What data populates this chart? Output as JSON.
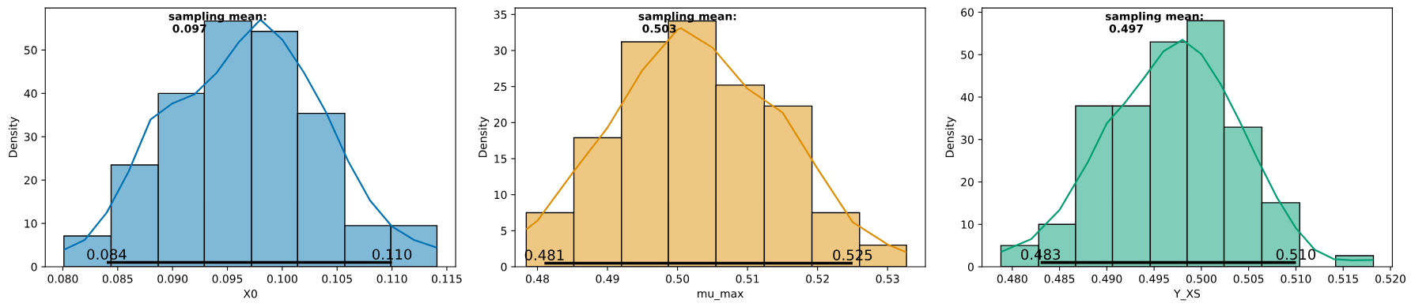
{
  "chart_data": [
    {
      "type": "histogram",
      "xlabel": "X0",
      "ylabel": "Density",
      "color": "#80b9d8",
      "bins": [
        0.0801,
        0.0844,
        0.0887,
        0.0929,
        0.0972,
        0.1014,
        0.1057,
        0.1099,
        0.1141
      ],
      "values": [
        7.1,
        23.5,
        40.0,
        56.7,
        54.3,
        35.4,
        9.5,
        9.5
      ],
      "series": [
        {
          "type": "line",
          "color": "#0173b2",
          "x": [
            0.0801,
            0.082,
            0.084,
            0.086,
            0.088,
            0.09,
            0.092,
            0.094,
            0.096,
            0.098,
            0.1,
            0.102,
            0.104,
            0.106,
            0.108,
            0.11,
            0.112,
            0.1141
          ],
          "values": [
            3.9,
            6.2,
            12.5,
            22,
            34,
            37.7,
            39.8,
            44.7,
            51.7,
            57,
            52.4,
            44.7,
            35.6,
            24.4,
            15.3,
            9.3,
            6.2,
            4.4
          ]
        },
        {
          "type": "line",
          "color": "#000000",
          "x": [
            0.084,
            0.11
          ],
          "values": [
            1,
            1
          ]
        }
      ],
      "annotations": [
        "sampling mean:\n 0.097",
        {
          "text": "0.084",
          "x": 0.084,
          "y": 1
        },
        {
          "text": "0.110",
          "x": 0.11,
          "y": 1
        }
      ],
      "xlim": [
        0.0784,
        0.1158
      ],
      "xticks": [
        {
          "value": 0.08,
          "label": "0.080"
        },
        0.085,
        {
          "value": 0.09,
          "label": "0.090"
        },
        0.095,
        {
          "value": 0.1,
          "label": "0.100"
        },
        0.105,
        {
          "value": 0.11,
          "label": "0.110"
        },
        0.115
      ],
      "ylim": [
        0,
        59.7
      ],
      "yticks": [
        0,
        10,
        20,
        30,
        40,
        50
      ]
    },
    {
      "type": "histogram",
      "xlabel": "mu_max",
      "ylabel": "Density",
      "color": "#eec782",
      "bins": [
        0.4784,
        0.4852,
        0.492,
        0.4987,
        0.5055,
        0.5124,
        0.5192,
        0.526,
        0.5327
      ],
      "values": [
        7.5,
        17.9,
        31.2,
        34.1,
        25.2,
        22.3,
        7.5,
        3.0
      ],
      "series": [
        {
          "type": "line",
          "color": "#de8f05",
          "x": [
            0.4784,
            0.48,
            0.485,
            0.49,
            0.495,
            0.5,
            0.5005,
            0.505,
            0.51,
            0.515,
            0.52,
            0.525,
            0.53,
            0.5327
          ],
          "values": [
            5.2,
            6.4,
            13,
            19.3,
            27.3,
            32.9,
            33.1,
            30.4,
            24.7,
            21.4,
            13.6,
            6.2,
            3.1,
            2.0
          ]
        },
        {
          "type": "line",
          "color": "#000000",
          "x": [
            0.481,
            0.525
          ],
          "values": [
            0.5,
            0.5
          ]
        }
      ],
      "annotations": [
        "sampling mean:\n 0.503",
        {
          "text": "0.481",
          "x": 0.481,
          "y": 0.5
        },
        {
          "text": "0.525",
          "x": 0.525,
          "y": 0.5
        }
      ],
      "xlim": [
        0.4768,
        0.5354
      ],
      "xticks": [
        {
          "value": 0.48,
          "label": "0.48"
        },
        {
          "value": 0.49,
          "label": "0.49"
        },
        {
          "value": 0.5,
          "label": "0.50"
        },
        {
          "value": 0.51,
          "label": "0.51"
        },
        {
          "value": 0.52,
          "label": "0.52"
        },
        {
          "value": 0.53,
          "label": "0.53"
        }
      ],
      "ylim": [
        0,
        35.9
      ],
      "yticks": [
        0,
        5,
        10,
        15,
        20,
        25,
        30,
        35
      ]
    },
    {
      "type": "histogram",
      "xlabel": "Y_XS",
      "ylabel": "Density",
      "color": "#80ceb9",
      "bins": [
        0.4788,
        0.4828,
        0.4867,
        0.4906,
        0.4946,
        0.4985,
        0.5024,
        0.5064,
        0.5104,
        0.5142,
        0.5182
      ],
      "values": [
        5.0,
        10.0,
        37.9,
        37.9,
        53.0,
        58.0,
        32.9,
        15.1,
        0,
        2.6
      ],
      "series": [
        {
          "type": "line",
          "color": "#029e73",
          "x": [
            0.4788,
            0.482,
            0.485,
            0.488,
            0.49,
            0.492,
            0.494,
            0.496,
            0.498,
            0.5,
            0.502,
            0.504,
            0.506,
            0.508,
            0.51,
            0.512,
            0.514,
            0.516,
            0.5182
          ],
          "values": [
            3.5,
            6.5,
            13.4,
            24.7,
            33.8,
            38.9,
            44.7,
            50.8,
            53.5,
            50.1,
            43.2,
            34.5,
            25.1,
            16.3,
            9.1,
            4.0,
            1.8,
            1.5,
            1.6
          ]
        },
        {
          "type": "line",
          "color": "#000000",
          "x": [
            0.483,
            0.51
          ],
          "values": [
            1,
            1
          ]
        }
      ],
      "annotations": [
        "sampling mean:\n 0.497",
        {
          "text": "0.483",
          "x": 0.483,
          "y": 1
        },
        {
          "text": "0.510",
          "x": 0.51,
          "y": 1
        }
      ],
      "xlim": [
        0.4768,
        0.5202
      ],
      "xticks": [
        {
          "value": 0.48,
          "label": "0.480"
        },
        0.485,
        {
          "value": 0.49,
          "label": "0.490"
        },
        0.495,
        {
          "value": 0.5,
          "label": "0.500"
        },
        0.505,
        {
          "value": 0.51,
          "label": "0.510"
        },
        0.515,
        {
          "value": 0.52,
          "label": "0.520"
        }
      ],
      "ylim": [
        0,
        61.0
      ],
      "yticks": [
        0,
        10,
        20,
        30,
        40,
        50,
        60
      ]
    }
  ]
}
